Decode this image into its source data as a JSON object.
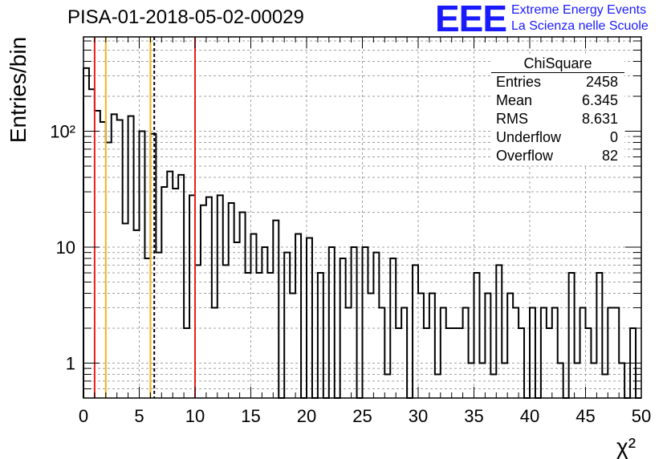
{
  "header": {
    "title": "PISA-01-2018-05-02-00029",
    "logo_text": "EEE",
    "logo_line1": "Extreme Energy Events",
    "logo_line2": "La Scienza nelle Scuole"
  },
  "stats_box": {
    "title": "ChiSquare",
    "rows": [
      {
        "label": "Entries",
        "value": "2458"
      },
      {
        "label": "Mean",
        "value": "6.345"
      },
      {
        "label": "RMS",
        "value": "8.631"
      },
      {
        "label": "Underflow",
        "value": "0"
      },
      {
        "label": "Overflow",
        "value": "82"
      }
    ]
  },
  "chart_data": {
    "type": "bar",
    "histogram": "step",
    "title": "PISA-01-2018-05-02-00029",
    "xlabel": "χ²",
    "ylabel": "Entries/bin",
    "xlim": [
      0,
      50
    ],
    "ylim": [
      0.5,
      650
    ],
    "yscale": "log",
    "grid": true,
    "bin_width": 0.5,
    "xticks": [
      "0",
      "5",
      "10",
      "15",
      "20",
      "25",
      "30",
      "35",
      "40",
      "45",
      "50"
    ],
    "yticks": [
      {
        "value": 1,
        "label": "1"
      },
      {
        "value": 10,
        "label": "10"
      },
      {
        "value": 100,
        "label": "10²"
      }
    ],
    "values": [
      350,
      230,
      150,
      120,
      80,
      140,
      125,
      16,
      135,
      14,
      100,
      8,
      95,
      9,
      33,
      45,
      32,
      42,
      2,
      28,
      7,
      23,
      27,
      3,
      28,
      7,
      24,
      11,
      20,
      6,
      13,
      6,
      10,
      6,
      17,
      0,
      9,
      4,
      13,
      0,
      12,
      0,
      6,
      0,
      10,
      0,
      8,
      3,
      10,
      0,
      10,
      4,
      9,
      3,
      0.8,
      8,
      2,
      3,
      0,
      7,
      4,
      2,
      4,
      0.8,
      3,
      2,
      2,
      2,
      3,
      1,
      6,
      1,
      4,
      0.8,
      7,
      1,
      4,
      3,
      2,
      0,
      3,
      0,
      3,
      2,
      3,
      1,
      0,
      6,
      1,
      3,
      2,
      1,
      6,
      0.8,
      3,
      3,
      1,
      0,
      2,
      0
    ],
    "vertical_lines": [
      {
        "x": 1.0,
        "color": "#e8201e",
        "style": "solid"
      },
      {
        "x": 2.0,
        "color": "#f2b51c",
        "style": "solid"
      },
      {
        "x": 6.0,
        "color": "#f2b51c",
        "style": "solid"
      },
      {
        "x": 6.345,
        "color": "#000000",
        "style": "dashed"
      },
      {
        "x": 10.0,
        "color": "#e8201e",
        "style": "solid"
      }
    ]
  }
}
